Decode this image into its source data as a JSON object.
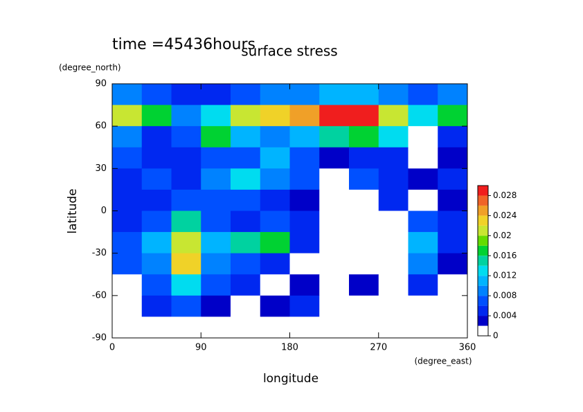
{
  "chart_data": {
    "type": "contour",
    "title": "surface stress",
    "subtitle": "time =45436hours",
    "x_label": "longitude",
    "x_units": "(degree_east)",
    "y_label": "latitude",
    "y_units": "(degree_north)",
    "x": [
      0,
      30,
      60,
      90,
      120,
      150,
      180,
      210,
      240,
      270,
      300,
      330,
      360
    ],
    "y": [
      90,
      75,
      60,
      45,
      30,
      15,
      0,
      -15,
      -30,
      -45,
      -60,
      -75,
      -90
    ],
    "z": [
      [
        0.008,
        0.006,
        0.004,
        0.004,
        0.006,
        0.008,
        0.008,
        0.01,
        0.01,
        0.008,
        0.006,
        0.008
      ],
      [
        0.02,
        0.016,
        0.008,
        0.012,
        0.02,
        0.022,
        0.024,
        0.03,
        0.028,
        0.02,
        0.012,
        0.016
      ],
      [
        0.008,
        0.004,
        0.006,
        0.016,
        0.01,
        0.008,
        0.01,
        0.014,
        0.016,
        0.012,
        0,
        0.004
      ],
      [
        0.006,
        0.004,
        0.004,
        0.006,
        0.006,
        0.01,
        0.006,
        0.002,
        0.004,
        0.004,
        0,
        0.002
      ],
      [
        0.004,
        0.006,
        0.004,
        0.008,
        0.012,
        0.008,
        0.006,
        0,
        0.006,
        0.004,
        0.002,
        0.004
      ],
      [
        0.004,
        0.004,
        0.006,
        0.006,
        0.006,
        0.004,
        0.002,
        0,
        0,
        0.004,
        0,
        0.002
      ],
      [
        0.004,
        0.006,
        0.014,
        0.006,
        0.004,
        0.006,
        0.004,
        0,
        0,
        0,
        0.006,
        0.004
      ],
      [
        0.006,
        0.01,
        0.02,
        0.01,
        0.014,
        0.016,
        0.004,
        0,
        0,
        0,
        0.01,
        0.004
      ],
      [
        0.006,
        0.008,
        0.022,
        0.008,
        0.006,
        0.004,
        0,
        0,
        0,
        0,
        0.008,
        0.002
      ],
      [
        0,
        0.006,
        0.012,
        0.006,
        0.004,
        0,
        0.002,
        0,
        0.002,
        0,
        0.004,
        0
      ],
      [
        0,
        0.004,
        0.006,
        0.002,
        0,
        0.002,
        0.004,
        0,
        0,
        0,
        0,
        0
      ],
      [
        0,
        0,
        0,
        0,
        0,
        0,
        0,
        0,
        0,
        0,
        0,
        0
      ]
    ],
    "xlim": [
      0,
      360
    ],
    "ylim": [
      -90,
      90
    ],
    "xticks": [
      0,
      90,
      180,
      270,
      360
    ],
    "yticks": [
      -90,
      -60,
      -30,
      0,
      30,
      60,
      90
    ],
    "levels": [
      0,
      0.002,
      0.004,
      0.006,
      0.008,
      0.01,
      0.012,
      0.014,
      0.016,
      0.018,
      0.02,
      0.022,
      0.024,
      0.026,
      0.028,
      0.03
    ],
    "colors": [
      "#ffffff",
      "#0000c8",
      "#0028f0",
      "#0050ff",
      "#0082ff",
      "#00b4ff",
      "#00dcf0",
      "#00d2a0",
      "#00d232",
      "#64dc00",
      "#c8e632",
      "#f0d228",
      "#f0a028",
      "#f06428",
      "#f01e1e"
    ],
    "colorbar_ticks": [
      0,
      0.004,
      0.008,
      0.012,
      0.016,
      0.02,
      0.024,
      0.028
    ]
  }
}
